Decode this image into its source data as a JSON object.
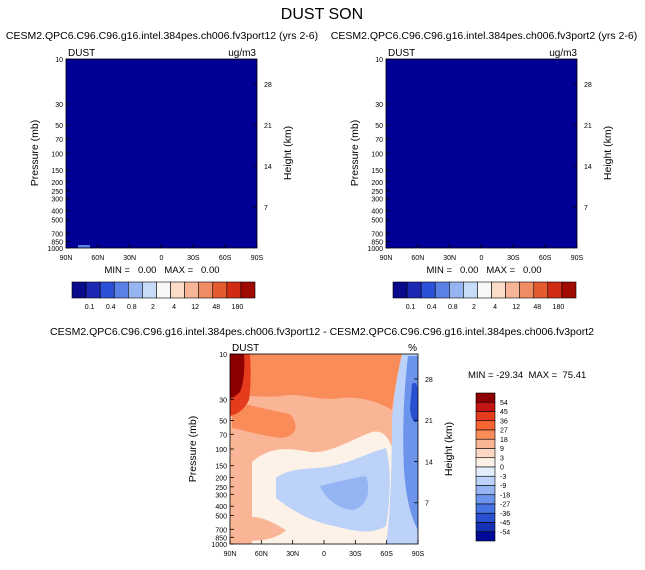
{
  "page": {
    "title": "DUST SON"
  },
  "panels": [
    {
      "id": "left",
      "title": "CESM2.QPC6.C96.C96.g16.intel.384pes.ch006.fv3port12 (yrs 2-6)",
      "var_label": "DUST",
      "units": "ug/m3",
      "ylabel": "Pressure (mb)",
      "ylabel2": "Height (km)",
      "min_max": "MIN =   0.00   MAX =   0.00"
    },
    {
      "id": "right",
      "title": "CESM2.QPC6.C96.C96.g16.intel.384pes.ch006.fv3port2 (yrs 2-6)",
      "var_label": "DUST",
      "units": "ug/m3",
      "ylabel": "Pressure (mb)",
      "ylabel2": "Height (km)",
      "min_max": "MIN =   0.00   MAX =   0.00"
    },
    {
      "id": "diff",
      "title": "CESM2.QPC6.C96.C96.g16.intel.384pes.ch006.fv3port12 - CESM2.QPC6.C96.C96.g16.intel.384pes.ch006.fv3port2",
      "var_label": "DUST",
      "units": "%",
      "ylabel": "Pressure (mb)",
      "ylabel2": "Height (km)",
      "min_max": "MIN = -29.34  MAX =  75.41"
    }
  ],
  "chart_data": [
    {
      "type": "heatmap",
      "title": "CESM2.QPC6.C96.C96.g16.intel.384pes.ch006.fv3port12 (yrs 2-6)",
      "xlabel": "",
      "ylabel": "Pressure (mb)",
      "ylabel_right": "Height (km)",
      "x_ticks": [
        "90N",
        "60N",
        "30N",
        "0",
        "30S",
        "60S",
        "90S"
      ],
      "y_ticks": [
        10,
        30,
        50,
        70,
        100,
        150,
        200,
        250,
        300,
        400,
        500,
        700,
        850,
        1000
      ],
      "y_ticks_right": [
        28,
        21,
        14,
        7
      ],
      "field": "uniform lowest contour level (0.0)",
      "min": 0.0,
      "max": 0.0,
      "colorbar_labels": [
        "0.1",
        "0.4",
        "0.8",
        "2",
        "4",
        "12",
        "48",
        "180"
      ]
    },
    {
      "type": "heatmap",
      "title": "CESM2.QPC6.C96.C96.g16.intel.384pes.ch006.fv3port2 (yrs 2-6)",
      "xlabel": "",
      "ylabel": "Pressure (mb)",
      "ylabel_right": "Height (km)",
      "x_ticks": [
        "90N",
        "60N",
        "30N",
        "0",
        "30S",
        "60S",
        "90S"
      ],
      "y_ticks": [
        10,
        30,
        50,
        70,
        100,
        150,
        200,
        250,
        300,
        400,
        500,
        700,
        850,
        1000
      ],
      "y_ticks_right": [
        28,
        21,
        14,
        7
      ],
      "field": "uniform lowest contour level (0.0)",
      "min": 0.0,
      "max": 0.0,
      "colorbar_labels": [
        "0.1",
        "0.4",
        "0.8",
        "2",
        "4",
        "12",
        "48",
        "180"
      ]
    },
    {
      "type": "heatmap",
      "title": "CESM2.QPC6.C96.C96.g16.intel.384pes.ch006.fv3port12 - CESM2.QPC6.C96.C96.g16.intel.384pes.ch006.fv3port2",
      "xlabel": "",
      "ylabel": "Pressure (mb)",
      "ylabel_right": "Height (km)",
      "x_ticks": [
        "90N",
        "60N",
        "30N",
        "0",
        "30S",
        "60S",
        "90S"
      ],
      "y_ticks": [
        10,
        30,
        50,
        70,
        100,
        150,
        200,
        250,
        300,
        400,
        500,
        700,
        850,
        1000
      ],
      "y_ticks_right": [
        28,
        21,
        14,
        7
      ],
      "min": -29.34,
      "max": 75.41,
      "colorbar_labels": [
        "54",
        "45",
        "36",
        "27",
        "18",
        "9",
        "3",
        "0",
        "-3",
        "-9",
        "-18",
        "-27",
        "-36",
        "-45",
        "-54"
      ],
      "regions": [
        {
          "lat": "90N-80N",
          "pressure": "10-50 mb",
          "value": "45 to 75"
        },
        {
          "lat": "80N-60S",
          "pressure": "10-150 mb",
          "value": "9 to 27"
        },
        {
          "lat": "30N-60S",
          "pressure": "200-1000 mb",
          "value": "-9 to 9"
        },
        {
          "lat": "60S-90S",
          "pressure": "10-1000 mb",
          "value": "-29 to -3"
        }
      ]
    }
  ],
  "colors": {
    "seq": [
      "#0a0a8c",
      "#1c28b4",
      "#2d50d8",
      "#5a82e6",
      "#96b4f0",
      "#c8dcfa",
      "#f8f8f8",
      "#fadcc8",
      "#f8b496",
      "#f08c64",
      "#e65a32",
      "#d22d14",
      "#a00a00"
    ],
    "div": [
      "#8c0000",
      "#c41414",
      "#e63c1e",
      "#f86432",
      "#fa8c5a",
      "#fab496",
      "#fcd8c4",
      "#fdf2e8",
      "#e4eefc",
      "#bcd2f8",
      "#94b4f4",
      "#6c94ec",
      "#4674e4",
      "#2850d0",
      "#1430b4",
      "#000a96"
    ],
    "field_blue": "#000096"
  }
}
